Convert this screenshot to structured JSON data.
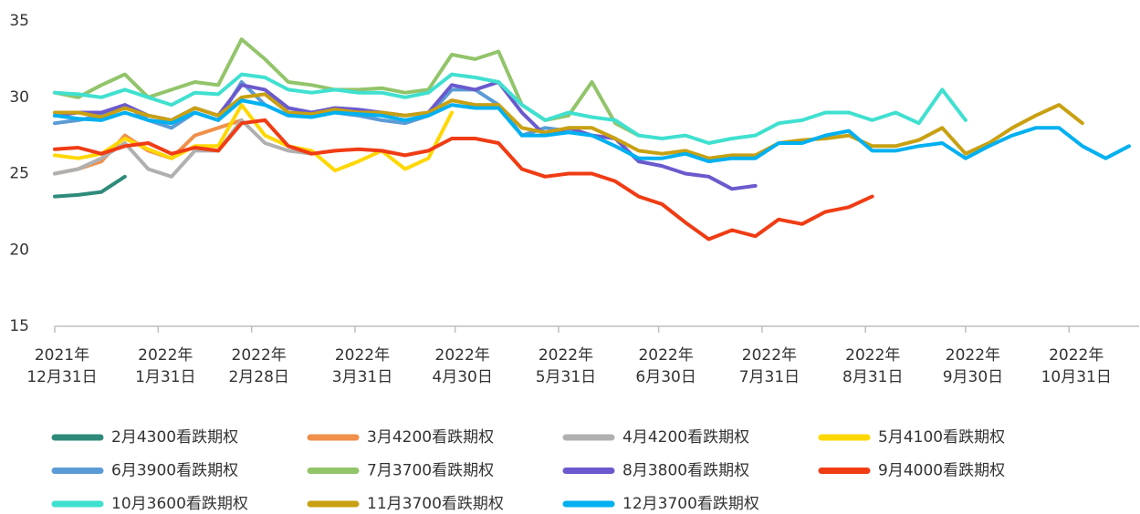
{
  "chart_data": {
    "type": "line",
    "x": [
      "2021-12-31",
      "2022-01-07",
      "2022-01-14",
      "2022-01-21",
      "2022-01-28",
      "2022-02-04",
      "2022-02-11",
      "2022-02-18",
      "2022-02-25",
      "2022-03-04",
      "2022-03-11",
      "2022-03-18",
      "2022-03-25",
      "2022-04-01",
      "2022-04-08",
      "2022-04-15",
      "2022-04-22",
      "2022-04-29",
      "2022-05-06",
      "2022-05-13",
      "2022-05-20",
      "2022-05-27",
      "2022-06-03",
      "2022-06-10",
      "2022-06-17",
      "2022-06-24",
      "2022-07-01",
      "2022-07-08",
      "2022-07-15",
      "2022-07-22",
      "2022-07-29",
      "2022-08-05",
      "2022-08-12",
      "2022-08-19",
      "2022-08-26",
      "2022-09-02",
      "2022-09-09",
      "2022-09-16",
      "2022-09-23",
      "2022-09-30",
      "2022-10-07",
      "2022-10-14",
      "2022-10-21",
      "2022-10-28",
      "2022-11-04",
      "2022-11-11",
      "2022-11-18"
    ],
    "xlim": [
      "2021-12-31",
      "2022-11-21"
    ],
    "xticks": [
      {
        "value": "2021-12-31",
        "label": "2021年\n12月31日"
      },
      {
        "value": "2022-01-31",
        "label": "2022年\n1月31日"
      },
      {
        "value": "2022-02-28",
        "label": "2022年\n2月28日"
      },
      {
        "value": "2022-03-31",
        "label": "2022年\n3月31日"
      },
      {
        "value": "2022-04-30",
        "label": "2022年\n4月30日"
      },
      {
        "value": "2022-05-31",
        "label": "2022年\n5月31日"
      },
      {
        "value": "2022-06-30",
        "label": "2022年\n6月30日"
      },
      {
        "value": "2022-07-31",
        "label": "2022年\n7月31日"
      },
      {
        "value": "2022-08-31",
        "label": "2022年\n8月31日"
      },
      {
        "value": "2022-09-30",
        "label": "2022年\n9月30日"
      },
      {
        "value": "2022-10-31",
        "label": "2022年\n10月31日"
      }
    ],
    "ylim": [
      15,
      35
    ],
    "yticks": [
      15,
      20,
      25,
      30,
      35
    ],
    "grid": false,
    "legend": "bottom",
    "series": [
      {
        "name": "2月4300看跌期权",
        "color": "#2e8b7a",
        "values": [
          23.5,
          23.6,
          23.8,
          24.8,
          null,
          null,
          null,
          null,
          null,
          null,
          null,
          null,
          null,
          null,
          null,
          null,
          null,
          null,
          null,
          null,
          null,
          null,
          null,
          null,
          null,
          null,
          null,
          null,
          null,
          null,
          null,
          null,
          null,
          null,
          null,
          null,
          null,
          null,
          null,
          null,
          null,
          null,
          null,
          null,
          null,
          null,
          null
        ]
      },
      {
        "name": "3月4200看跌期权",
        "color": "#f0904a",
        "values": [
          25.0,
          25.3,
          25.8,
          27.5,
          26.5,
          26.0,
          27.5,
          28.0,
          28.5,
          null,
          null,
          null,
          null,
          null,
          null,
          null,
          null,
          null,
          null,
          null,
          null,
          null,
          null,
          null,
          null,
          null,
          null,
          null,
          null,
          null,
          null,
          null,
          null,
          null,
          null,
          null,
          null,
          null,
          null,
          null,
          null,
          null,
          null,
          null,
          null,
          null,
          null
        ]
      },
      {
        "name": "4月4200看跌期权",
        "color": "#b0b0b0",
        "values": [
          25.0,
          25.3,
          26.0,
          27.0,
          25.3,
          24.8,
          26.5,
          26.5,
          28.5,
          27.0,
          26.5,
          26.3,
          26.5,
          null,
          null,
          null,
          null,
          null,
          null,
          null,
          null,
          null,
          null,
          null,
          null,
          null,
          null,
          null,
          null,
          null,
          null,
          null,
          null,
          null,
          null,
          null,
          null,
          null,
          null,
          null,
          null,
          null,
          null,
          null,
          null,
          null,
          null
        ]
      },
      {
        "name": "5月4100看跌期权",
        "color": "#ffd700",
        "values": [
          26.2,
          26.0,
          26.3,
          27.3,
          26.6,
          26.0,
          26.8,
          26.8,
          29.5,
          27.5,
          26.8,
          26.5,
          25.2,
          25.8,
          26.5,
          25.3,
          26.0,
          29.0,
          null,
          null,
          null,
          null,
          null,
          null,
          null,
          null,
          null,
          null,
          null,
          null,
          null,
          null,
          null,
          null,
          null,
          null,
          null,
          null,
          null,
          null,
          null,
          null,
          null,
          null,
          null,
          null,
          null
        ]
      },
      {
        "name": "6月3900看跌期权",
        "color": "#5b9bd5",
        "values": [
          28.3,
          28.5,
          28.8,
          29.5,
          28.5,
          28.0,
          29.0,
          28.5,
          31.0,
          29.5,
          28.8,
          29.0,
          29.0,
          28.8,
          28.5,
          28.3,
          28.8,
          30.5,
          30.5,
          29.5,
          27.5,
          28.0,
          27.8,
          null,
          null,
          null,
          null,
          null,
          null,
          null,
          null,
          null,
          null,
          null,
          null,
          null,
          null,
          null,
          null,
          null,
          null,
          null,
          null,
          null,
          null,
          null,
          null
        ]
      },
      {
        "name": "7月3700看跌期权",
        "color": "#92c46a",
        "values": [
          30.3,
          30.0,
          30.8,
          31.5,
          30.0,
          30.5,
          31.0,
          30.8,
          33.8,
          32.5,
          31.0,
          30.8,
          30.5,
          30.5,
          30.6,
          30.3,
          30.5,
          32.8,
          32.5,
          33.0,
          29.5,
          28.5,
          28.8,
          31.0,
          28.3,
          27.5,
          null,
          null,
          null,
          null,
          null,
          null,
          null,
          null,
          null,
          null,
          null,
          null,
          null,
          null,
          null,
          null,
          null,
          null,
          null,
          null,
          null
        ]
      },
      {
        "name": "8月3800看跌期权",
        "color": "#6a5acd",
        "values": [
          28.8,
          29.0,
          29.0,
          29.5,
          28.8,
          28.5,
          29.3,
          28.8,
          30.8,
          30.5,
          29.3,
          29.0,
          29.3,
          29.2,
          29.0,
          28.8,
          29.0,
          30.8,
          30.5,
          31.0,
          29.0,
          27.5,
          28.0,
          27.5,
          27.3,
          25.8,
          25.5,
          25.0,
          24.8,
          24.0,
          24.2,
          null,
          null,
          null,
          null,
          null,
          null,
          null,
          null,
          null,
          null,
          null,
          null,
          null,
          null,
          null,
          null
        ]
      },
      {
        "name": "9月4000看跌期权",
        "color": "#f03c14",
        "values": [
          26.6,
          26.7,
          26.3,
          26.8,
          27.0,
          26.3,
          26.7,
          26.5,
          28.3,
          28.5,
          26.8,
          26.3,
          26.5,
          26.6,
          26.5,
          26.2,
          26.5,
          27.3,
          27.3,
          27.0,
          25.3,
          24.8,
          25.0,
          25.0,
          24.5,
          23.5,
          23.0,
          21.8,
          20.7,
          21.3,
          20.9,
          22.0,
          21.7,
          22.5,
          22.8,
          23.5,
          null,
          null,
          null,
          null,
          null,
          null,
          null,
          null,
          null,
          null,
          null
        ]
      },
      {
        "name": "10月3600看跌期权",
        "color": "#40e0d0",
        "values": [
          30.3,
          30.2,
          30.0,
          30.5,
          30.0,
          29.5,
          30.3,
          30.2,
          31.5,
          31.3,
          30.5,
          30.3,
          30.5,
          30.3,
          30.3,
          30.0,
          30.3,
          31.5,
          31.3,
          31.0,
          29.5,
          28.5,
          29.0,
          28.7,
          28.5,
          27.5,
          27.3,
          27.5,
          27.0,
          27.3,
          27.5,
          28.3,
          28.5,
          29.0,
          29.0,
          28.5,
          29.0,
          28.3,
          30.5,
          28.5,
          null,
          null,
          null,
          null,
          null,
          null,
          null
        ]
      },
      {
        "name": "11月3700看跌期权",
        "color": "#c8a012",
        "values": [
          29.0,
          29.0,
          28.7,
          29.3,
          28.8,
          28.5,
          29.3,
          28.8,
          30.0,
          30.2,
          29.0,
          28.9,
          29.2,
          29.0,
          29.0,
          28.8,
          29.0,
          29.8,
          29.5,
          29.5,
          28.0,
          27.7,
          28.0,
          28.0,
          27.3,
          26.5,
          26.3,
          26.5,
          26.0,
          26.2,
          26.2,
          27.0,
          27.2,
          27.3,
          27.5,
          26.8,
          26.8,
          27.2,
          28.0,
          26.3,
          27.0,
          28.0,
          28.8,
          29.5,
          28.3,
          null,
          null
        ]
      },
      {
        "name": "12月3700看跌期权",
        "color": "#00b0f0",
        "values": [
          28.8,
          28.6,
          28.5,
          29.0,
          28.5,
          28.3,
          29.0,
          28.5,
          29.8,
          29.5,
          28.8,
          28.7,
          29.0,
          28.9,
          28.8,
          28.5,
          28.8,
          29.5,
          29.3,
          29.3,
          27.5,
          27.5,
          27.7,
          27.5,
          26.8,
          26.0,
          26.0,
          26.3,
          25.8,
          26.0,
          26.0,
          27.0,
          27.0,
          27.5,
          27.8,
          26.5,
          26.5,
          26.8,
          27.0,
          26.0,
          26.8,
          27.5,
          28.0,
          28.0,
          26.8,
          26.0,
          26.8
        ]
      }
    ]
  }
}
